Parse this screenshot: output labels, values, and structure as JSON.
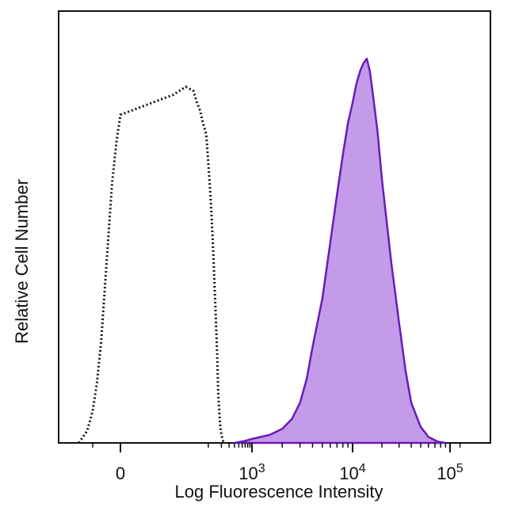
{
  "chart_data": {
    "type": "area",
    "xlabel": "Log Fluorescence Intensity",
    "ylabel": "Relative Cell Number",
    "x_scale": "biexponential",
    "x_ticks": [
      {
        "value": 0,
        "base": "0",
        "exp": ""
      },
      {
        "value": 1000,
        "base": "10",
        "exp": "3"
      },
      {
        "value": 10000,
        "base": "10",
        "exp": "4"
      },
      {
        "value": 100000,
        "base": "10",
        "exp": "5"
      }
    ],
    "ylim": [
      0,
      100
    ],
    "grid": false,
    "colors": {
      "stained_fill": "#c39be8",
      "stained_line": "#6a1bb8",
      "control_line": "#111111",
      "axis": "#111111"
    },
    "series": [
      {
        "style": "dotted-outline",
        "points": [
          [
            -150,
            0
          ],
          [
            -120,
            3
          ],
          [
            -100,
            8
          ],
          [
            -85,
            15
          ],
          [
            -70,
            25
          ],
          [
            -55,
            40
          ],
          [
            -40,
            55
          ],
          [
            -30,
            65
          ],
          [
            -15,
            75
          ],
          [
            0,
            82
          ],
          [
            15,
            87
          ],
          [
            30,
            89
          ],
          [
            45,
            88
          ],
          [
            55,
            85
          ],
          [
            65,
            83
          ],
          [
            75,
            80
          ],
          [
            90,
            77
          ],
          [
            100,
            70
          ],
          [
            115,
            60
          ],
          [
            130,
            48
          ],
          [
            145,
            35
          ],
          [
            160,
            22
          ],
          [
            170,
            12
          ],
          [
            185,
            5
          ],
          [
            200,
            2
          ],
          [
            220,
            0.5
          ],
          [
            250,
            0
          ]
        ]
      },
      {
        "style": "filled",
        "points": [
          [
            400,
            0
          ],
          [
            700,
            0.5
          ],
          [
            1000,
            1
          ],
          [
            1500,
            2
          ],
          [
            2000,
            3.5
          ],
          [
            2500,
            6
          ],
          [
            3000,
            10
          ],
          [
            3500,
            16
          ],
          [
            4000,
            24
          ],
          [
            5000,
            36
          ],
          [
            6000,
            50
          ],
          [
            7000,
            62
          ],
          [
            8000,
            72
          ],
          [
            9000,
            80
          ],
          [
            10000,
            85
          ],
          [
            11000,
            90
          ],
          [
            12000,
            93
          ],
          [
            13000,
            95
          ],
          [
            14000,
            96
          ],
          [
            15000,
            93
          ],
          [
            16000,
            88
          ],
          [
            18000,
            78
          ],
          [
            20000,
            66
          ],
          [
            25000,
            45
          ],
          [
            30000,
            30
          ],
          [
            35000,
            18
          ],
          [
            40000,
            10
          ],
          [
            50000,
            4
          ],
          [
            60000,
            1.5
          ],
          [
            75000,
            0.3
          ],
          [
            90000,
            0
          ]
        ]
      }
    ]
  }
}
